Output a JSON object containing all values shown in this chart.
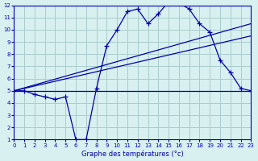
{
  "title": "Graphe des températures (°c)",
  "bg_color": "#d8f0f0",
  "grid_color": "#aacccc",
  "line_color": "#0000aa",
  "x_ticks": [
    0,
    1,
    2,
    3,
    4,
    5,
    6,
    7,
    8,
    9,
    10,
    11,
    12,
    13,
    14,
    15,
    16,
    17,
    18,
    19,
    20,
    21,
    22,
    23
  ],
  "y_ticks": [
    1,
    2,
    3,
    4,
    5,
    6,
    7,
    8,
    9,
    10,
    11,
    12
  ],
  "xlim": [
    0,
    23
  ],
  "ylim": [
    1,
    12
  ],
  "temp_line": {
    "x": [
      0,
      1,
      2,
      3,
      4,
      5,
      6,
      7,
      8,
      9,
      10,
      11,
      12,
      13,
      14,
      15,
      16,
      17,
      18,
      19,
      20,
      21,
      22,
      23
    ],
    "y": [
      5,
      5,
      4.7,
      4.5,
      4.3,
      4.5,
      1.0,
      1.0,
      5.2,
      8.7,
      10.0,
      11.5,
      11.7,
      10.5,
      11.3,
      12.3,
      12.2,
      11.7,
      10.5,
      9.8,
      7.5,
      6.5,
      5.2,
      5.0
    ]
  },
  "flat_line": {
    "x": [
      0,
      23
    ],
    "y": [
      5,
      5
    ]
  },
  "trend_line2": {
    "x": [
      0,
      23
    ],
    "y": [
      5,
      9.5
    ]
  },
  "trend_line3": {
    "x": [
      0,
      23
    ],
    "y": [
      5,
      10.5
    ]
  }
}
